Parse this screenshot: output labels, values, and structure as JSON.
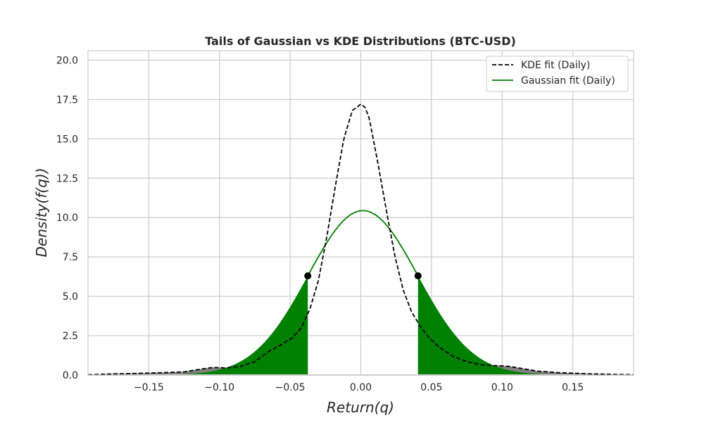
{
  "chart_data": {
    "type": "line",
    "title": "Tails of Gaussian vs KDE Distributions (BTC-USD)",
    "xlabel": "Return(q)",
    "ylabel": "Density(f(q))",
    "xlim": [
      -0.193,
      0.193
    ],
    "ylim": [
      0,
      20.6
    ],
    "x_ticks": [
      -0.15,
      -0.1,
      -0.05,
      0.0,
      0.05,
      0.1,
      0.15
    ],
    "x_tick_labels": [
      "−0.15",
      "−0.10",
      "−0.05",
      "0.00",
      "0.05",
      "0.10",
      "0.15"
    ],
    "y_ticks": [
      0,
      2.5,
      5,
      7.5,
      10,
      12.5,
      15,
      17.5,
      20
    ],
    "y_tick_labels": [
      "0.0",
      "2.5",
      "5.0",
      "7.5",
      "10.0",
      "12.5",
      "15.0",
      "17.5",
      "20.0"
    ],
    "grid": true,
    "legend_position": "top-right",
    "series": [
      {
        "name": "KDE fit (Daily)",
        "style": "dashed",
        "color": "#000000",
        "x": [
          -0.193,
          -0.18,
          -0.16,
          -0.14,
          -0.125,
          -0.115,
          -0.105,
          -0.095,
          -0.085,
          -0.075,
          -0.065,
          -0.055,
          -0.048,
          -0.042,
          -0.036,
          -0.03,
          -0.024,
          -0.018,
          -0.012,
          -0.006,
          0.0,
          0.003,
          0.006,
          0.012,
          0.018,
          0.024,
          0.03,
          0.036,
          0.042,
          0.048,
          0.055,
          0.065,
          0.075,
          0.085,
          0.095,
          0.105,
          0.115,
          0.125,
          0.14,
          0.16,
          0.18,
          0.193
        ],
        "y": [
          0.02,
          0.06,
          0.1,
          0.15,
          0.2,
          0.35,
          0.48,
          0.45,
          0.55,
          0.85,
          1.5,
          2.0,
          2.4,
          3.0,
          4.2,
          6.0,
          8.8,
          12.0,
          15.0,
          16.8,
          17.2,
          17.0,
          16.3,
          13.5,
          10.5,
          7.6,
          5.4,
          4.0,
          3.1,
          2.4,
          1.8,
          1.2,
          0.85,
          0.65,
          0.6,
          0.55,
          0.4,
          0.25,
          0.15,
          0.08,
          0.04,
          0.02
        ]
      },
      {
        "name": "Gaussian fit (Daily)",
        "style": "solid",
        "color": "#008000",
        "mean": 0.0015,
        "std": 0.0388
      }
    ],
    "shaded_tails": [
      {
        "side": "left",
        "x_cut": -0.0375,
        "y_at_cut": 6.3,
        "color": "#008000"
      },
      {
        "side": "right",
        "x_cut": 0.0405,
        "y_at_cut": 6.3,
        "color": "#008000"
      }
    ],
    "kde_excess_fill_color": "#808080",
    "cutoff_marker_color": "#000000"
  }
}
